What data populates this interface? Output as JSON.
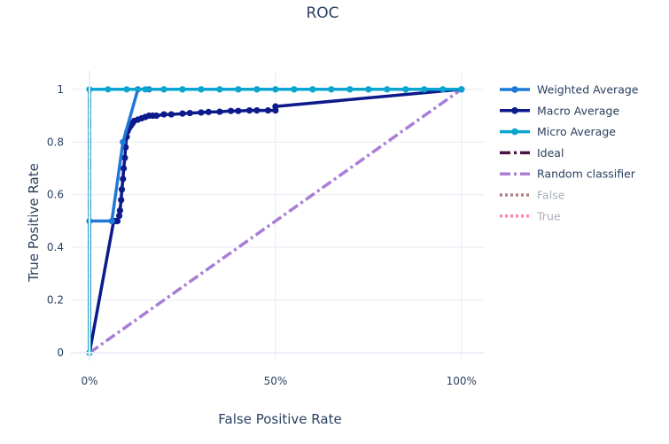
{
  "chart_data": {
    "type": "line",
    "title": "ROC",
    "xlabel": "False Positive Rate",
    "ylabel": "True Positive Rate",
    "xlim": [
      -0.05,
      1.06
    ],
    "ylim": [
      -0.03,
      1.07
    ],
    "x_ticks": [
      {
        "value": 0,
        "label": "0%"
      },
      {
        "value": 0.5,
        "label": "50%"
      },
      {
        "value": 1,
        "label": "100%"
      }
    ],
    "y_ticks": [
      {
        "value": 0,
        "label": "0"
      },
      {
        "value": 0.2,
        "label": "0.2"
      },
      {
        "value": 0.4,
        "label": "0.4"
      },
      {
        "value": 0.6,
        "label": "0.6"
      },
      {
        "value": 0.8,
        "label": "0.8"
      },
      {
        "value": 1,
        "label": "1"
      }
    ],
    "grid": true,
    "legend_position": "right",
    "series": [
      {
        "name": "Weighted Average",
        "color": "#1f78d8",
        "dash": "solid",
        "markers": true,
        "x": [
          0,
          0,
          0.06,
          0.09,
          0.13,
          0.16,
          0.2,
          0.25,
          0.3,
          0.35,
          0.4,
          0.45,
          0.5,
          0.55,
          0.6,
          0.65,
          0.7,
          0.75,
          0.8,
          0.85,
          0.9,
          0.95,
          1
        ],
        "y": [
          0,
          0.5,
          0.5,
          0.8,
          1,
          1,
          1,
          1,
          1,
          1,
          1,
          1,
          1,
          1,
          1,
          1,
          1,
          1,
          1,
          1,
          1,
          1,
          1
        ]
      },
      {
        "name": "Macro Average",
        "color": "#0d1a8c",
        "dash": "solid",
        "markers": true,
        "x": [
          0,
          0.065,
          0.07,
          0.075,
          0.08,
          0.082,
          0.085,
          0.087,
          0.09,
          0.092,
          0.095,
          0.097,
          0.1,
          0.102,
          0.105,
          0.11,
          0.115,
          0.12,
          0.13,
          0.14,
          0.15,
          0.16,
          0.17,
          0.18,
          0.2,
          0.22,
          0.25,
          0.27,
          0.3,
          0.32,
          0.35,
          0.38,
          0.4,
          0.43,
          0.45,
          0.48,
          0.5,
          0.5,
          1
        ],
        "y": [
          0,
          0.5,
          0.5,
          0.5,
          0.52,
          0.54,
          0.58,
          0.62,
          0.66,
          0.7,
          0.74,
          0.78,
          0.82,
          0.84,
          0.85,
          0.86,
          0.87,
          0.88,
          0.885,
          0.89,
          0.895,
          0.9,
          0.9,
          0.9,
          0.905,
          0.905,
          0.908,
          0.91,
          0.912,
          0.914,
          0.915,
          0.918,
          0.918,
          0.92,
          0.92,
          0.92,
          0.92,
          0.935,
          1
        ]
      },
      {
        "name": "Micro Average",
        "color": "#0aa6cf",
        "dash": "solid",
        "markers": true,
        "x": [
          0,
          0,
          0.05,
          0.1,
          0.15,
          0.2,
          0.25,
          0.3,
          0.35,
          0.4,
          0.45,
          0.5,
          0.55,
          0.6,
          0.65,
          0.7,
          0.75,
          0.8,
          0.85,
          0.9,
          0.95,
          1
        ],
        "y": [
          0,
          1,
          1,
          1,
          1,
          1,
          1,
          1,
          1,
          1,
          1,
          1,
          1,
          1,
          1,
          1,
          1,
          1,
          1,
          1,
          1,
          1
        ]
      },
      {
        "name": "Ideal",
        "color": "#4a1442",
        "dash": "dashdot",
        "markers": false,
        "x": [
          0,
          0,
          1
        ],
        "y": [
          0,
          1,
          1
        ]
      },
      {
        "name": "Random classifier",
        "color": "#a87ed6",
        "dash": "dashdot",
        "markers": false,
        "x": [
          0,
          1
        ],
        "y": [
          0,
          1
        ]
      },
      {
        "name": "False",
        "color": "#b07f86",
        "dash": "dot",
        "markers": false,
        "hidden": true,
        "x": [],
        "y": []
      },
      {
        "name": "True",
        "color": "#ff7fae",
        "dash": "dot",
        "markers": false,
        "hidden": true,
        "x": [],
        "y": []
      }
    ]
  }
}
